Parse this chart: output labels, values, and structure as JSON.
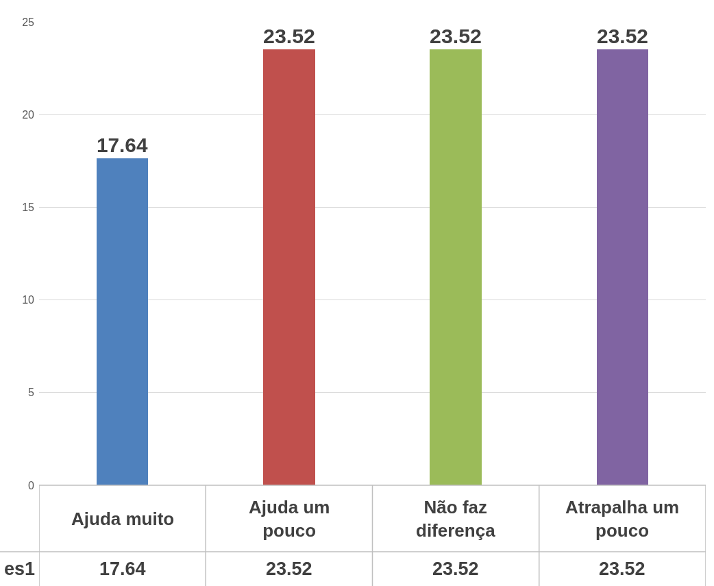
{
  "chart_data": {
    "type": "bar",
    "categories": [
      "Ajuda muito",
      "Ajuda um pouco",
      "Não faz diferença",
      "Atrapalha um pouco"
    ],
    "series": [
      {
        "name": "es1",
        "values": [
          17.64,
          23.52,
          23.52,
          23.52
        ],
        "value_labels": [
          "17.64",
          "23.52",
          "23.52",
          "23.52"
        ]
      }
    ],
    "colors": [
      "#4f81bd",
      "#c0504d",
      "#9bbb59",
      "#8064a2"
    ],
    "annotations": [
      "17.64",
      "23.52",
      "23.52",
      "23.52"
    ],
    "ylim": [
      0,
      25
    ],
    "yticks": [
      0,
      5,
      10,
      15,
      20,
      25
    ],
    "grid": "y",
    "legend": false
  }
}
